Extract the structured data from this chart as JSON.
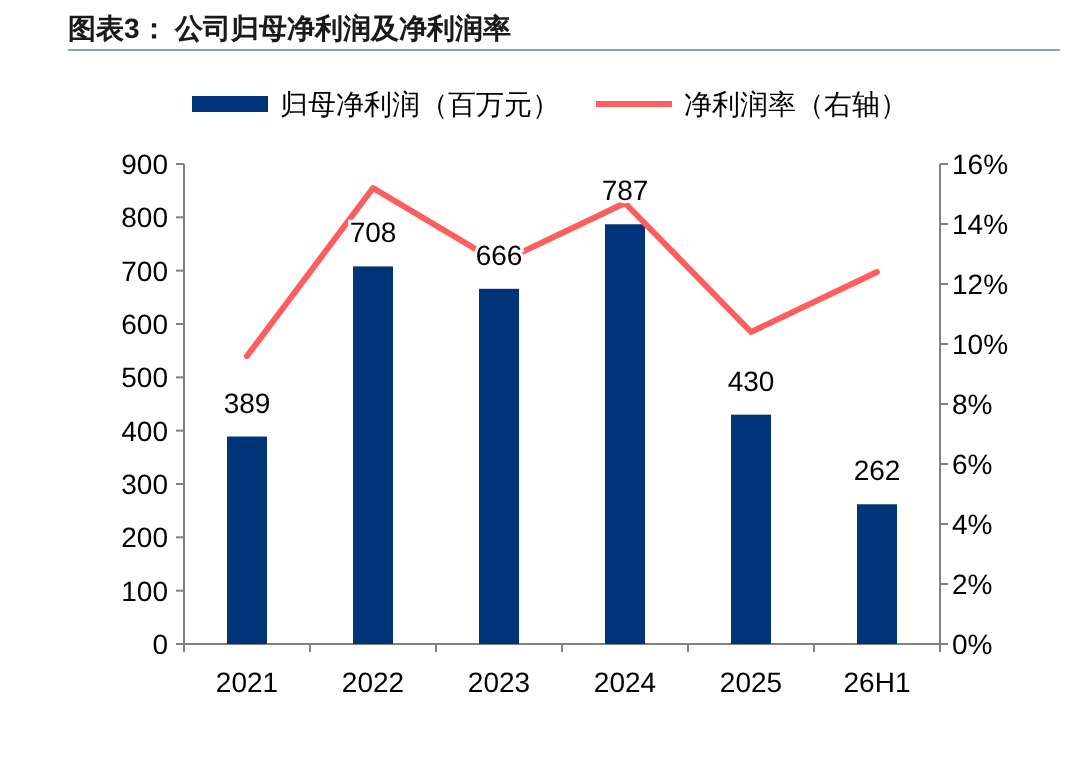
{
  "chart_data": {
    "type": "bar",
    "title": "图表3：  公司归母净利润及净利润率",
    "categories": [
      "2021",
      "2022",
      "2023",
      "2024",
      "2025",
      "26H1"
    ],
    "series": [
      {
        "name": "归母净利润（百万元）",
        "color": "#003478",
        "values": [
          389,
          708,
          666,
          787,
          430,
          262
        ],
        "value_labels": [
          "389",
          "708",
          "666",
          "787",
          "430",
          "262"
        ]
      },
      {
        "name": "净利润率（右轴）",
        "type": "line",
        "axis": "y2",
        "color": "#fe5e5e",
        "values": [
          9.6,
          15.2,
          12.7,
          14.7,
          10.4,
          12.4
        ]
      }
    ],
    "legend": "top",
    "grid": false,
    "marker": "none",
    "line_style": "solid",
    "ylim": [
      0,
      900
    ],
    "yticks": [
      0,
      100,
      200,
      300,
      400,
      500,
      600,
      700,
      800,
      900
    ],
    "y2lim": [
      0,
      16
    ],
    "y2ticks": [
      {
        "value": 0,
        "label": "0%"
      },
      {
        "value": 2,
        "label": "2%"
      },
      {
        "value": 4,
        "label": "4%"
      },
      {
        "value": 6,
        "label": "6%"
      },
      {
        "value": 8,
        "label": "8%"
      },
      {
        "value": 10,
        "label": "10%"
      },
      {
        "value": 12,
        "label": "12%"
      },
      {
        "value": 14,
        "label": "14%"
      },
      {
        "value": 16,
        "label": "16%"
      }
    ]
  }
}
